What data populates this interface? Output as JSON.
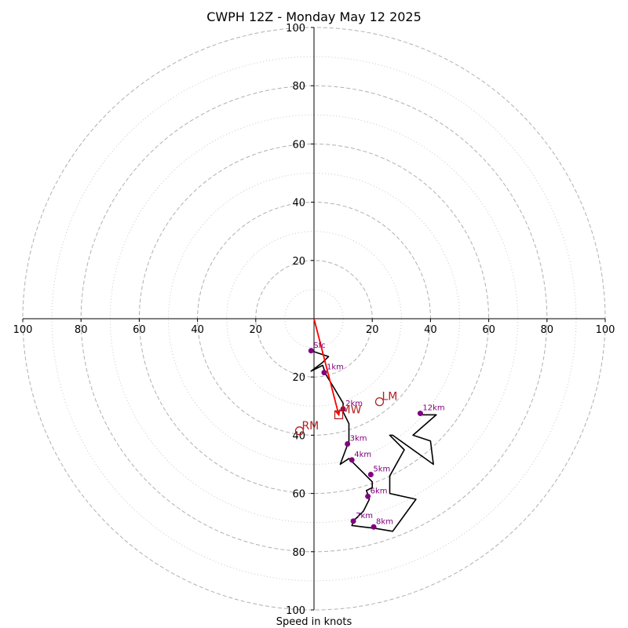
{
  "chart_data": {
    "type": "hodograph",
    "title": "CWPH 12Z - Monday May 12 2025",
    "xlabel": "Speed in knots",
    "range": [
      -100,
      100
    ],
    "rings_major": [
      20,
      40,
      60,
      80,
      100
    ],
    "rings_minor": [
      10,
      30,
      50,
      70,
      90
    ],
    "tick_values": [
      20,
      40,
      60,
      80,
      100
    ],
    "colors": {
      "hodograph": "#000000",
      "height_marker": "#800080",
      "motion": "#b22222",
      "shear_vector": "#ff0000",
      "ring_major": "#b0b0b0",
      "ring_minor": "#c8c8c8"
    },
    "hodograph": {
      "u": [
        -1,
        5,
        3,
        -1,
        3,
        4,
        7,
        10,
        10,
        12,
        12,
        9,
        12,
        13,
        17,
        20,
        20,
        18,
        19,
        17,
        14,
        13,
        17,
        21,
        27,
        35,
        26,
        26,
        31,
        26,
        27,
        41,
        40,
        34,
        42,
        37
      ],
      "v": [
        -11,
        -13,
        -15,
        -18,
        -16,
        -19,
        -24,
        -29,
        -32,
        -36,
        -42,
        -50,
        -48,
        -49,
        -53,
        -56,
        -58,
        -59,
        -62,
        -66,
        -69,
        -71,
        -71.5,
        -72,
        -73,
        -62,
        -60,
        -54,
        -45,
        -40,
        -40,
        -50,
        -42,
        -40,
        -33,
        -33
      ]
    },
    "heights": [
      {
        "label": "Sfc",
        "u": -1,
        "v": -11
      },
      {
        "label": "1km",
        "u": 3.5,
        "v": -18.5
      },
      {
        "label": "2km",
        "u": 10,
        "v": -31
      },
      {
        "label": "3km",
        "u": 11.5,
        "v": -43
      },
      {
        "label": "4km",
        "u": 13,
        "v": -48.5
      },
      {
        "label": "5km",
        "u": 19.5,
        "v": -53.5
      },
      {
        "label": "6km",
        "u": 18.5,
        "v": -61
      },
      {
        "label": "7km",
        "u": 13.5,
        "v": -69.5
      },
      {
        "label": "8km",
        "u": 20.5,
        "v": -71.5
      },
      {
        "label": "12km",
        "u": 36.5,
        "v": -32.5
      }
    ],
    "storm_motions": [
      {
        "label": "LM",
        "u": 22.5,
        "v": -28.5,
        "marker": "circle"
      },
      {
        "label": "MW",
        "u": 8.5,
        "v": -33,
        "marker": "square"
      },
      {
        "label": "RM",
        "u": -5,
        "v": -38.5,
        "marker": "circle"
      }
    ],
    "shear_vector": {
      "u0": 0,
      "v0": 0,
      "u1": 8.5,
      "v1": -33
    }
  }
}
